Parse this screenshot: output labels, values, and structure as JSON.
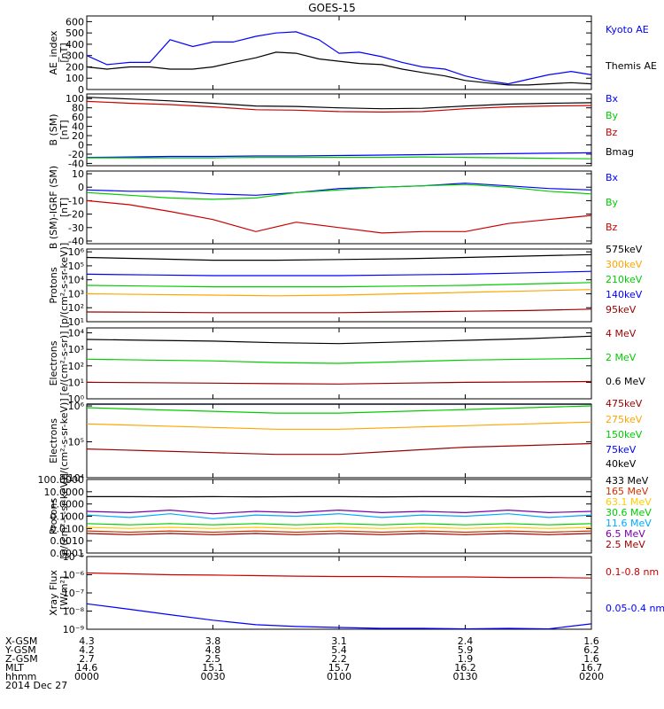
{
  "title": "GOES-15",
  "chart_data": [
    {
      "type": "line",
      "ylabel": [
        "AE_index",
        "[nT]"
      ],
      "yscale": "linear",
      "ylim": [
        0,
        650
      ],
      "yticks": [
        0,
        100,
        200,
        300,
        400,
        500,
        600
      ],
      "yticklabels": [
        "0",
        "100",
        "200",
        "300",
        "400",
        "500",
        "600"
      ],
      "x_hours": [
        0,
        0.08,
        0.17,
        0.25,
        0.33,
        0.42,
        0.5,
        0.58,
        0.67,
        0.75,
        0.83,
        0.92,
        1.0,
        1.08,
        1.17,
        1.25,
        1.33,
        1.42,
        1.5,
        1.58,
        1.67,
        1.75,
        1.83,
        1.92,
        2.0
      ],
      "series": [
        {
          "name": "Kyoto AE",
          "color": "#0000ff",
          "values": [
            300,
            220,
            240,
            240,
            440,
            380,
            420,
            420,
            470,
            500,
            510,
            440,
            320,
            330,
            290,
            240,
            200,
            180,
            120,
            80,
            50,
            90,
            130,
            160,
            130
          ]
        },
        {
          "name": "Themis AE",
          "color": "#000000",
          "values": [
            200,
            180,
            200,
            200,
            180,
            180,
            200,
            240,
            280,
            330,
            320,
            270,
            250,
            230,
            220,
            180,
            150,
            120,
            80,
            60,
            40,
            40,
            50,
            60,
            50
          ]
        }
      ]
    },
    {
      "type": "line",
      "ylabel": [
        "B (SM)",
        "[nT]"
      ],
      "yscale": "linear",
      "ylim": [
        -45,
        110
      ],
      "yticks": [
        -40,
        -20,
        0,
        20,
        40,
        60,
        80,
        100
      ],
      "yticklabels": [
        "-40",
        "-20",
        "0",
        "20",
        "40",
        "60",
        "80",
        "100"
      ],
      "x_hours": [
        0,
        0.17,
        0.33,
        0.5,
        0.67,
        0.83,
        1.0,
        1.17,
        1.33,
        1.5,
        1.67,
        1.83,
        2.0
      ],
      "series": [
        {
          "name": "Bx",
          "color": "#0000ff",
          "values": [
            -27,
            -26,
            -25,
            -25,
            -24,
            -24,
            -23,
            -22,
            -21,
            -20,
            -19,
            -18,
            -17
          ]
        },
        {
          "name": "By",
          "color": "#00cc00",
          "values": [
            -28,
            -28,
            -28,
            -28,
            -27,
            -27,
            -27,
            -27,
            -26,
            -27,
            -28,
            -29,
            -30
          ]
        },
        {
          "name": "Bz",
          "color": "#cc0000",
          "values": [
            94,
            90,
            87,
            82,
            76,
            75,
            72,
            71,
            72,
            78,
            82,
            84,
            85
          ]
        },
        {
          "name": "Bmag",
          "color": "#000000",
          "values": [
            103,
            99,
            95,
            90,
            84,
            83,
            80,
            78,
            79,
            84,
            88,
            90,
            91
          ]
        }
      ]
    },
    {
      "type": "line",
      "ylabel": [
        "B (SM)-IGRF (SM)",
        "[nT]"
      ],
      "yscale": "linear",
      "ylim": [
        -42,
        12
      ],
      "yticks": [
        -40,
        -30,
        -20,
        -10,
        0,
        10
      ],
      "yticklabels": [
        "-40",
        "-30",
        "-20",
        "-10",
        "0",
        "10"
      ],
      "x_hours": [
        0,
        0.17,
        0.33,
        0.5,
        0.67,
        0.83,
        1.0,
        1.17,
        1.33,
        1.5,
        1.67,
        1.83,
        2.0
      ],
      "series": [
        {
          "name": "Bx",
          "color": "#0000ff",
          "values": [
            -2,
            -3,
            -3,
            -5,
            -6,
            -4,
            -1,
            0,
            1,
            3,
            1,
            -1,
            -2
          ]
        },
        {
          "name": "By",
          "color": "#00cc00",
          "values": [
            -4,
            -6,
            -8,
            -9,
            -8,
            -4,
            -2,
            0,
            1,
            2,
            0,
            -3,
            -5
          ]
        },
        {
          "name": "Bz",
          "color": "#cc0000",
          "values": [
            -10,
            -13,
            -18,
            -24,
            -33,
            -26,
            -30,
            -34,
            -33,
            -33,
            -27,
            -24,
            -21
          ]
        }
      ]
    },
    {
      "type": "line",
      "ylabel": [
        "Protons",
        "[p/(cm²-s-sr-keV)]"
      ],
      "yscale": "log",
      "ylim_exp": [
        1,
        6.2
      ],
      "yticks_exp": [
        1,
        2,
        3,
        4,
        5,
        6
      ],
      "yticklabels": [
        "10¹",
        "10²",
        "10³",
        "10⁴",
        "10⁵",
        "10⁶"
      ],
      "x_hours": [
        0,
        0.25,
        0.5,
        0.75,
        1.0,
        1.25,
        1.5,
        1.75,
        2.0
      ],
      "series": [
        {
          "name": "575keV",
          "color": "#000000",
          "values_exp": [
            5.6,
            5.5,
            5.4,
            5.4,
            5.45,
            5.5,
            5.6,
            5.7,
            5.8
          ]
        },
        {
          "name": "300keV",
          "color": "#ffa500",
          "values_exp": [
            3.0,
            2.95,
            2.9,
            2.85,
            2.9,
            3.0,
            3.1,
            3.2,
            3.3
          ]
        },
        {
          "name": "210keV",
          "color": "#00cc00",
          "values_exp": [
            3.6,
            3.55,
            3.5,
            3.5,
            3.5,
            3.55,
            3.6,
            3.7,
            3.8
          ]
        },
        {
          "name": "140keV",
          "color": "#0000ff",
          "values_exp": [
            4.4,
            4.35,
            4.3,
            4.3,
            4.3,
            4.35,
            4.4,
            4.5,
            4.6
          ]
        },
        {
          "name": "95keV",
          "color": "#990000",
          "values_exp": [
            1.7,
            1.68,
            1.65,
            1.65,
            1.65,
            1.7,
            1.75,
            1.8,
            1.9
          ]
        }
      ]
    },
    {
      "type": "line",
      "ylabel": [
        "Electrons",
        "[e/(cm²-s-sr)]"
      ],
      "yscale": "log",
      "ylim_exp": [
        0,
        4.3
      ],
      "yticks_exp": [
        0,
        1,
        2,
        3,
        4
      ],
      "yticklabels": [
        "10⁰",
        "10¹",
        "10²",
        "10³",
        "10⁴"
      ],
      "x_hours": [
        0,
        0.25,
        0.5,
        0.75,
        1.0,
        1.25,
        1.5,
        1.75,
        2.0
      ],
      "series": [
        {
          "name": "4 MeV",
          "color": "#990000",
          "values_exp": [
            1.0,
            0.98,
            0.95,
            0.92,
            0.9,
            0.95,
            1.0,
            1.02,
            1.05
          ]
        },
        {
          "name": "2 MeV",
          "color": "#00cc00",
          "values_exp": [
            2.4,
            2.35,
            2.3,
            2.2,
            2.15,
            2.25,
            2.35,
            2.4,
            2.45
          ]
        },
        {
          "name": "0.6 MeV",
          "color": "#000000",
          "values_exp": [
            3.6,
            3.55,
            3.5,
            3.4,
            3.35,
            3.45,
            3.55,
            3.65,
            3.8
          ]
        }
      ]
    },
    {
      "type": "line",
      "ylabel": [
        "Electrons",
        "[e/(cm²-s-sr-keV)]"
      ],
      "yscale": "log",
      "ylim_exp": [
        4,
        6.05
      ],
      "yticks_exp": [
        4,
        5,
        6
      ],
      "yticklabels": [
        "10⁴",
        "10⁵",
        "10⁶"
      ],
      "x_hours": [
        0,
        0.25,
        0.5,
        0.75,
        1.0,
        1.25,
        1.5,
        1.75,
        2.0
      ],
      "series": [
        {
          "name": "475keV",
          "color": "#990000",
          "values_exp": [
            4.8,
            4.75,
            4.7,
            4.65,
            4.65,
            4.75,
            4.85,
            4.9,
            4.95
          ]
        },
        {
          "name": "275keV",
          "color": "#ffa500",
          "values_exp": [
            5.5,
            5.45,
            5.4,
            5.35,
            5.35,
            5.4,
            5.45,
            5.5,
            5.55
          ]
        },
        {
          "name": "150keV",
          "color": "#00cc00",
          "values_exp": [
            5.95,
            5.9,
            5.85,
            5.8,
            5.8,
            5.85,
            5.9,
            5.95,
            6.0
          ]
        },
        {
          "name": "75keV",
          "color": "#0000ff",
          "values_exp": [
            6.2,
            6.2,
            6.2,
            6.2,
            6.2,
            6.2,
            6.2,
            6.2,
            6.2
          ]
        },
        {
          "name": "40keV",
          "color": "#000000",
          "values_exp": [
            6.4,
            6.4,
            6.4,
            6.4,
            6.4,
            6.4,
            6.4,
            6.4,
            6.4
          ]
        }
      ]
    },
    {
      "type": "line",
      "ylabel": [
        "Protons",
        "[p/(cm²-s-sr-keV)]"
      ],
      "yscale": "log",
      "ylim_exp": [
        -4,
        2
      ],
      "yticks_exp": [
        -4,
        -3,
        -2,
        -1,
        0,
        1,
        2
      ],
      "yticklabels": [
        "0.0001",
        "0.0010",
        "0.0100",
        "0.1000",
        "1.0000",
        "10.0000",
        "100.0000"
      ],
      "x_hours": [
        0,
        0.17,
        0.33,
        0.5,
        0.67,
        0.83,
        1.0,
        1.17,
        1.33,
        1.5,
        1.67,
        1.83,
        2.0
      ],
      "series": [
        {
          "name": "433 MeV",
          "color": "#000000",
          "values_exp": [
            0.6,
            0.6,
            0.58,
            0.6,
            0.58,
            0.6,
            0.6,
            0.58,
            0.6,
            0.6,
            0.58,
            0.6,
            0.6
          ]
        },
        {
          "name": "165 MeV",
          "color": "#cc3300",
          "values_exp": [
            -2.2,
            -2.3,
            -2.2,
            -2.3,
            -2.2,
            -2.3,
            -2.2,
            -2.3,
            -2.2,
            -2.3,
            -2.2,
            -2.3,
            -2.2
          ]
        },
        {
          "name": "63.1 MeV",
          "color": "#ffcc00",
          "values_exp": [
            -1.9,
            -2.0,
            -1.9,
            -2.0,
            -1.9,
            -2.0,
            -1.9,
            -2.0,
            -1.9,
            -2.0,
            -1.9,
            -2.0,
            -1.9
          ]
        },
        {
          "name": "30.6 MeV",
          "color": "#00cc00",
          "values_exp": [
            -1.6,
            -1.7,
            -1.6,
            -1.7,
            -1.6,
            -1.7,
            -1.6,
            -1.7,
            -1.6,
            -1.7,
            -1.6,
            -1.7,
            -1.6
          ]
        },
        {
          "name": "11.6 MeV",
          "color": "#00aaff",
          "values_exp": [
            -0.9,
            -1.1,
            -0.8,
            -1.2,
            -0.9,
            -1.0,
            -0.8,
            -1.1,
            -0.9,
            -1.0,
            -0.8,
            -1.1,
            -0.9
          ]
        },
        {
          "name": "6.5 MeV",
          "color": "#7700aa",
          "values_exp": [
            -0.6,
            -0.7,
            -0.5,
            -0.8,
            -0.6,
            -0.7,
            -0.5,
            -0.7,
            -0.6,
            -0.7,
            -0.5,
            -0.7,
            -0.6
          ]
        },
        {
          "name": "2.5 MeV",
          "color": "#990000",
          "values_exp": [
            -2.4,
            -2.5,
            -2.4,
            -2.5,
            -2.4,
            -2.5,
            -2.4,
            -2.5,
            -2.4,
            -2.5,
            -2.4,
            -2.5,
            -2.4
          ]
        }
      ]
    },
    {
      "type": "line",
      "ylabel": [
        "Xray Flux",
        "[W/m²]"
      ],
      "yscale": "log",
      "ylim_exp": [
        -9,
        -5
      ],
      "yticks_exp": [
        -9,
        -8,
        -7,
        -6,
        -5
      ],
      "yticklabels": [
        "10⁻⁹",
        "10⁻⁸",
        "10⁻⁷",
        "10⁻⁶",
        "10⁻⁵"
      ],
      "x_hours": [
        0,
        0.17,
        0.33,
        0.5,
        0.67,
        0.83,
        1.0,
        1.17,
        1.33,
        1.5,
        1.67,
        1.83,
        2.0
      ],
      "series": [
        {
          "name": "0.1-0.8 nm",
          "color": "#cc0000",
          "values_exp": [
            -5.9,
            -5.95,
            -6.0,
            -6.02,
            -6.05,
            -6.08,
            -6.1,
            -6.1,
            -6.12,
            -6.12,
            -6.15,
            -6.15,
            -6.18
          ]
        },
        {
          "name": "0.05-0.4 nm",
          "color": "#0000ff",
          "values_exp": [
            -7.6,
            -7.9,
            -8.2,
            -8.5,
            -8.75,
            -8.85,
            -8.9,
            -8.95,
            -8.95,
            -8.98,
            -8.95,
            -8.98,
            -8.7
          ]
        }
      ]
    }
  ],
  "x_axis": {
    "date": "2014 Dec 27",
    "row_labels": [
      "X-GSM",
      "Y-GSM",
      "Z-GSM",
      "MLT",
      "hhmm"
    ],
    "ticks": [
      {
        "hour": 0,
        "values": [
          "4.3",
          "4.2",
          "2.7",
          "14.6",
          "0000"
        ]
      },
      {
        "hour": 0.5,
        "values": [
          "3.8",
          "4.8",
          "2.5",
          "15.1",
          "0030"
        ]
      },
      {
        "hour": 1.0,
        "values": [
          "3.1",
          "5.4",
          "2.2",
          "15.7",
          "0100"
        ]
      },
      {
        "hour": 1.5,
        "values": [
          "2.4",
          "5.9",
          "1.9",
          "16.2",
          "0130"
        ]
      },
      {
        "hour": 2.0,
        "values": [
          "1.6",
          "6.2",
          "1.6",
          "16.7",
          "0200"
        ]
      }
    ]
  }
}
